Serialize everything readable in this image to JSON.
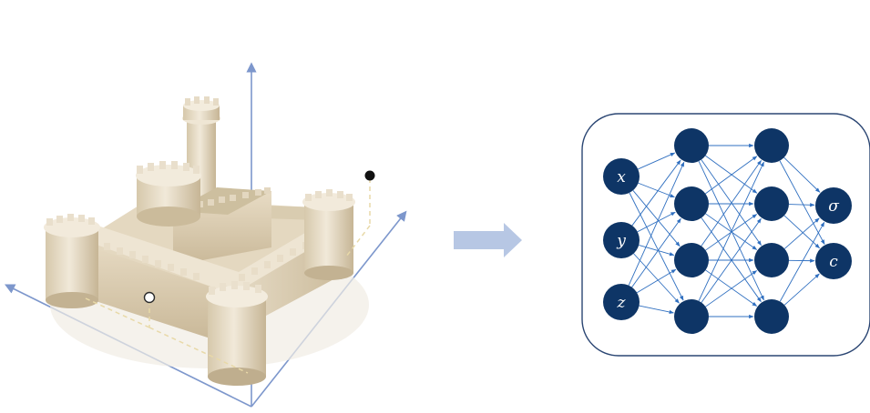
{
  "inputs": [
    "x",
    "y",
    "z"
  ],
  "outputs": [
    "σ",
    "c"
  ],
  "hidden_layers": [
    4,
    4
  ],
  "colors": {
    "axis": "#7d97cc",
    "node": "#0e3566",
    "edge": "#2f6fc0",
    "panel_border": "#2b4673",
    "arrow": "#b7c7e4",
    "castle_light": "#ece3d1",
    "castle_mid": "#d9ccb2",
    "castle_dark": "#bfae90",
    "dashed": "#e8d9a8"
  },
  "icons": {
    "castle": "castle-3d-illustration",
    "transform": "right-arrow-icon",
    "sample_point_inside": "hollow-circle-point",
    "sample_point_outside": "filled-circle-point"
  }
}
